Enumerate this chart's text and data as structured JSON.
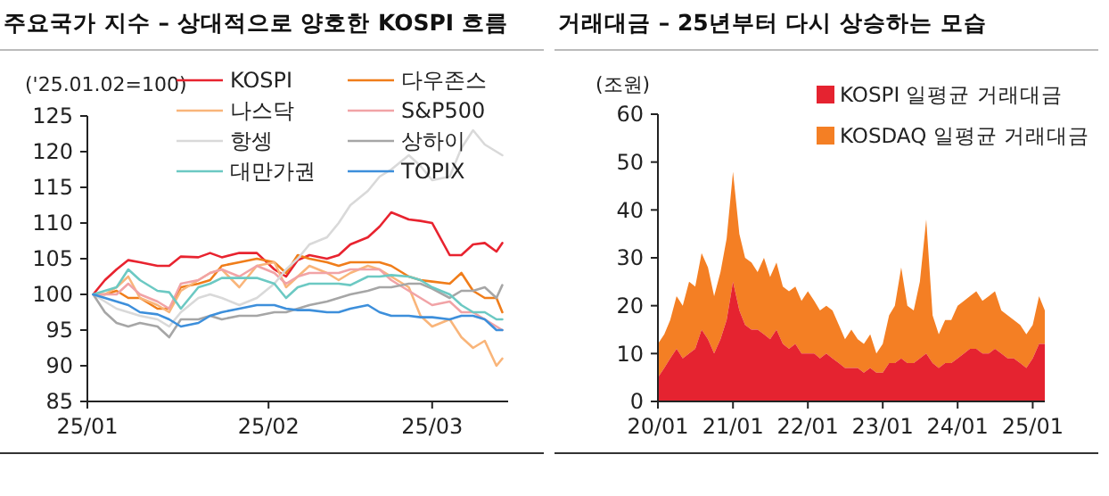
{
  "chart_data": [
    {
      "type": "line",
      "title": "주요국가 지수 – 상대적으로 양호한 KOSPI 흐름",
      "ylabel": "('25.01.02=100)",
      "legend": "top",
      "marker": "none",
      "line_style": "solid",
      "grid": false,
      "x": [
        "2025-01-02",
        "2025-01-04",
        "2025-01-06",
        "2025-01-08",
        "2025-01-10",
        "2025-01-13",
        "2025-01-15",
        "2025-01-17",
        "2025-01-20",
        "2025-01-22",
        "2025-01-24",
        "2025-01-27",
        "2025-01-30",
        "2025-02-02",
        "2025-02-04",
        "2025-02-06",
        "2025-02-08",
        "2025-02-11",
        "2025-02-13",
        "2025-02-15",
        "2025-02-18",
        "2025-02-20",
        "2025-02-22",
        "2025-02-25",
        "2025-02-27",
        "2025-03-01",
        "2025-03-04",
        "2025-03-06",
        "2025-03-08",
        "2025-03-10",
        "2025-03-12",
        "2025-03-13"
      ],
      "xlim": [
        "2025-01-01",
        "2025-03-14"
      ],
      "xticks": [
        {
          "value": "2025-01-01",
          "label": "25/01"
        },
        {
          "value": "2025-02-01",
          "label": "25/02"
        },
        {
          "value": "2025-03-01",
          "label": "25/03"
        }
      ],
      "ylim": [
        85,
        125
      ],
      "yticks": [
        85,
        90,
        95,
        100,
        105,
        110,
        115,
        120,
        125
      ],
      "series": [
        {
          "name": "KOSPI",
          "color": "#e8232f",
          "values": [
            100,
            102,
            103.5,
            104.8,
            104.5,
            104,
            104,
            105.3,
            105.2,
            105.8,
            105.2,
            105.8,
            105.8,
            103.5,
            102.5,
            104.8,
            105.5,
            105,
            105.5,
            107,
            108,
            109.5,
            111.5,
            110.5,
            110.3,
            110,
            105.5,
            105.5,
            107,
            107.2,
            106,
            107.2
          ]
        },
        {
          "name": "다우존스",
          "color": "#f07d1a",
          "values": [
            100,
            100,
            100.5,
            99.5,
            99.5,
            98,
            98,
            101,
            101.5,
            102,
            104,
            104.5,
            105,
            104.5,
            103,
            105.5,
            105,
            104.5,
            104,
            104.5,
            104.5,
            104.5,
            104,
            102.5,
            102,
            101.8,
            101.5,
            103,
            100.5,
            99.5,
            99.5,
            97.5
          ]
        },
        {
          "name": "나스닥",
          "color": "#f9b57a",
          "values": [
            100,
            100,
            101,
            102.5,
            99.5,
            98.5,
            97.5,
            100.5,
            102,
            103,
            103.5,
            101,
            104,
            104.5,
            101,
            102.5,
            104,
            103,
            102,
            103,
            104,
            103.5,
            102.5,
            101,
            97,
            95.5,
            96.5,
            94,
            92.5,
            93.5,
            90,
            91
          ]
        },
        {
          "name": "S&P500",
          "color": "#f1a3a6",
          "values": [
            100,
            100,
            100,
            101.5,
            100,
            99,
            98,
            101.5,
            102,
            103,
            103.5,
            102.5,
            104,
            103,
            101.5,
            102.5,
            103,
            103,
            103,
            103.5,
            103.5,
            103.5,
            102,
            100.5,
            99.5,
            98.5,
            99,
            97.5,
            97.5,
            96.5,
            95.5,
            95
          ]
        },
        {
          "name": "항셍",
          "color": "#d9d9d9",
          "values": [
            100,
            99,
            98,
            97.5,
            97,
            96.5,
            95.5,
            97.5,
            99.5,
            100,
            99.5,
            98.5,
            99.5,
            101.5,
            103.5,
            105,
            107,
            108,
            110,
            112.5,
            114.5,
            116.5,
            117.5,
            119.5,
            118,
            116,
            116.5,
            120.5,
            123,
            121,
            120,
            119.5
          ]
        },
        {
          "name": "상하이",
          "color": "#a6a6a6",
          "values": [
            100,
            97.5,
            96,
            95.5,
            96,
            95.5,
            94,
            96.5,
            96.5,
            97,
            96.5,
            97,
            97,
            97.5,
            97.5,
            98,
            98.5,
            99,
            99.5,
            100,
            100.5,
            101,
            101,
            101.5,
            101.5,
            100.8,
            99.5,
            100.5,
            100.5,
            101,
            99.5,
            101.3
          ]
        },
        {
          "name": "대만가권",
          "color": "#6cc9c3",
          "values": [
            100,
            100.5,
            101,
            103.5,
            102,
            100.5,
            100.3,
            98,
            101,
            101.5,
            102.3,
            102.3,
            102.3,
            101.5,
            99.5,
            101,
            101.5,
            101.5,
            101.5,
            101.3,
            102.5,
            102.5,
            102.7,
            102.5,
            102,
            101,
            100,
            98.5,
            97.5,
            97.5,
            96.5,
            96.5
          ]
        },
        {
          "name": "TOPIX",
          "color": "#3d8fdb",
          "values": [
            100,
            99.5,
            99,
            98.5,
            97.5,
            97.2,
            96.5,
            95.5,
            96,
            97,
            97.5,
            98,
            98.5,
            98.5,
            98,
            97.8,
            97.8,
            97.5,
            97.5,
            98,
            98.5,
            97.5,
            97,
            97,
            96.8,
            96.8,
            96.5,
            97,
            97,
            96.5,
            95,
            95
          ]
        }
      ]
    },
    {
      "type": "area",
      "stacked": true,
      "title": "거래대금 – 25년부터 다시 상승하는 모습",
      "ylabel": "(조원)",
      "legend": "top right",
      "grid": false,
      "x": [
        "2020-01",
        "2020-02",
        "2020-03",
        "2020-04",
        "2020-05",
        "2020-06",
        "2020-07",
        "2020-08",
        "2020-09",
        "2020-10",
        "2020-11",
        "2020-12",
        "2021-01",
        "2021-02",
        "2021-03",
        "2021-04",
        "2021-05",
        "2021-06",
        "2021-07",
        "2021-08",
        "2021-09",
        "2021-10",
        "2021-11",
        "2021-12",
        "2022-01",
        "2022-02",
        "2022-03",
        "2022-04",
        "2022-05",
        "2022-06",
        "2022-07",
        "2022-08",
        "2022-09",
        "2022-10",
        "2022-11",
        "2022-12",
        "2023-01",
        "2023-02",
        "2023-03",
        "2023-04",
        "2023-05",
        "2023-06",
        "2023-07",
        "2023-08",
        "2023-09",
        "2023-10",
        "2023-11",
        "2023-12",
        "2024-01",
        "2024-02",
        "2024-03",
        "2024-04",
        "2024-05",
        "2024-06",
        "2024-07",
        "2024-08",
        "2024-09",
        "2024-10",
        "2024-11",
        "2024-12",
        "2025-01",
        "2025-02",
        "2025-03"
      ],
      "xlim": [
        "2020-01",
        "2025-03"
      ],
      "xticks": [
        {
          "value": "2020-01",
          "label": "20/01"
        },
        {
          "value": "2021-01",
          "label": "21/01"
        },
        {
          "value": "2022-01",
          "label": "22/01"
        },
        {
          "value": "2023-01",
          "label": "23/01"
        },
        {
          "value": "2024-01",
          "label": "24/01"
        },
        {
          "value": "2025-01",
          "label": "25/01"
        }
      ],
      "ylim": [
        0,
        60
      ],
      "yticks": [
        0,
        10,
        20,
        30,
        40,
        50,
        60
      ],
      "series": [
        {
          "name": "KOSPI 일평균 거래대금",
          "color": "#e52330",
          "values": [
            5,
            7,
            9,
            11,
            9,
            10,
            11,
            15,
            13,
            10,
            13,
            17,
            25,
            19,
            16,
            15,
            15,
            14,
            13,
            15,
            12,
            11,
            12,
            10,
            10,
            10,
            9,
            10,
            9,
            8,
            7,
            7,
            7,
            6,
            7,
            6,
            6,
            8,
            8,
            9,
            8,
            8,
            9,
            10,
            8,
            7,
            8,
            8,
            9,
            10,
            11,
            11,
            10,
            10,
            11,
            10,
            9,
            9,
            8,
            7,
            9,
            12,
            12
          ]
        },
        {
          "name": "KOSDAQ 일평균 거래대금",
          "color": "#f47f24",
          "values": [
            7,
            7,
            8,
            11,
            11,
            15,
            13,
            16,
            15,
            12,
            14,
            17,
            23,
            16,
            14,
            14,
            12,
            16,
            13,
            14,
            12,
            12,
            12,
            11,
            13,
            11,
            10,
            10,
            10,
            8,
            6,
            8,
            6,
            6,
            7,
            4,
            6,
            10,
            12,
            19,
            12,
            11,
            16,
            28,
            10,
            7,
            9,
            9,
            11,
            11,
            11,
            12,
            11,
            12,
            12,
            9,
            9,
            8,
            8,
            7,
            7,
            10,
            7
          ]
        }
      ]
    }
  ]
}
